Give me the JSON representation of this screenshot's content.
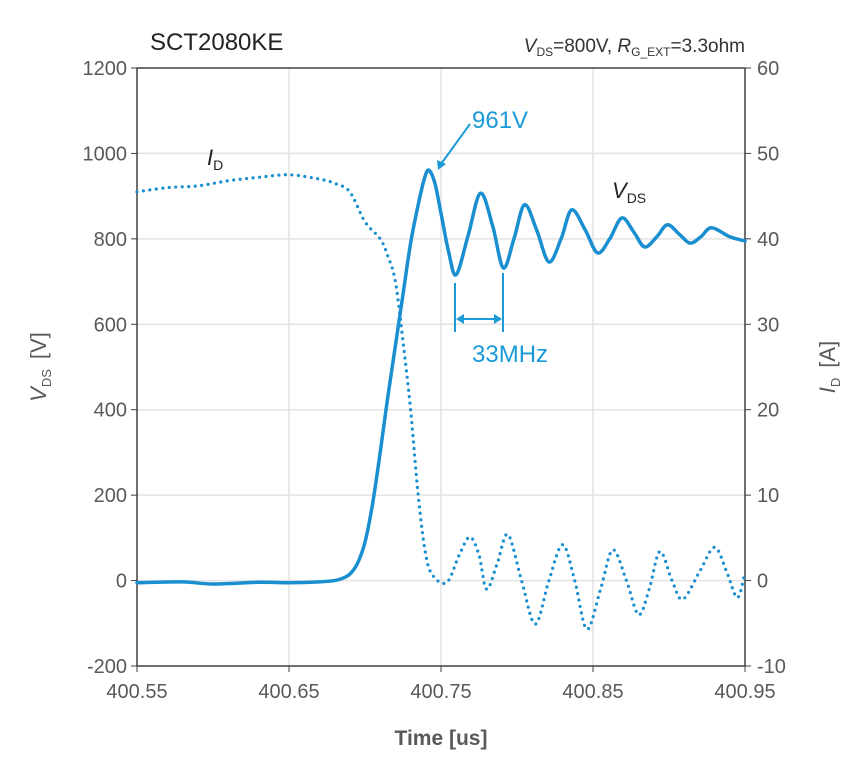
{
  "chart_data": {
    "type": "line",
    "title": "SCT2080KE",
    "subtitle": {
      "v_sym": "V",
      "v_sub": "DS",
      "v_val": "=800V, ",
      "r_sym": "R",
      "r_sub": "G_EXT",
      "r_val": "=3.3ohm"
    },
    "xlabel": "Time [us]",
    "ylabel": {
      "sym": "V",
      "sub": "DS",
      "unit": "[V]"
    },
    "y2label": {
      "sym": "I",
      "sub": "D",
      "unit": "[A]"
    },
    "xlim": [
      400.55,
      400.95
    ],
    "ylim": [
      -200,
      1200
    ],
    "y2lim": [
      -10,
      60
    ],
    "xticks": [
      "400.55",
      "400.65",
      "400.75",
      "400.85",
      "400.95"
    ],
    "yticks": [
      "-200",
      "0",
      "200",
      "400",
      "600",
      "800",
      "1000",
      "1200"
    ],
    "y2ticks": [
      "-10",
      "0",
      "10",
      "20",
      "30",
      "40",
      "50",
      "60"
    ],
    "grid": true,
    "color": "#1a8fd0",
    "series": [
      {
        "name": "VDS",
        "label_sym": "V",
        "label_sub": "DS",
        "axis": "left",
        "style": "solid",
        "x": [
          400.55,
          400.58,
          400.6,
          400.63,
          400.65,
          400.67,
          400.68,
          400.685,
          400.69,
          400.695,
          400.7,
          400.705,
          400.71,
          400.715,
          400.72,
          400.725,
          400.73,
          400.735,
          400.739,
          400.742,
          400.746,
          400.75,
          400.755,
          400.76,
          400.768,
          400.776,
          400.784,
          400.791,
          400.798,
          400.805,
          400.813,
          400.821,
          400.829,
          400.836,
          400.845,
          400.853,
          400.861,
          400.869,
          400.877,
          400.884,
          400.892,
          400.899,
          400.907,
          400.914,
          400.921,
          400.928,
          400.94,
          400.95
        ],
        "y": [
          -5,
          -3,
          -8,
          -4,
          -5,
          -3,
          0,
          5,
          15,
          40,
          90,
          180,
          300,
          430,
          550,
          670,
          790,
          880,
          940,
          961,
          930,
          860,
          770,
          716,
          810,
          907,
          830,
          732,
          800,
          880,
          820,
          746,
          800,
          868,
          820,
          767,
          800,
          849,
          815,
          781,
          805,
          833,
          810,
          790,
          805,
          826,
          805,
          795
        ]
      },
      {
        "name": "ID",
        "label_sym": "I",
        "label_sub": "D",
        "axis": "right",
        "style": "dotted",
        "x": [
          400.55,
          400.57,
          400.59,
          400.61,
          400.63,
          400.65,
          400.67,
          400.68,
          400.69,
          400.7,
          400.71,
          400.715,
          400.72,
          400.725,
          400.73,
          400.735,
          400.74,
          400.745,
          400.754,
          400.762,
          400.769,
          400.775,
          400.78,
          400.787,
          400.794,
          400.803,
          400.812,
          400.821,
          400.83,
          400.838,
          400.846,
          400.855,
          400.863,
          400.872,
          400.88,
          400.887,
          400.894,
          400.902,
          400.909,
          400.92,
          400.93,
          400.938,
          400.945,
          400.95
        ],
        "y": [
          45.5,
          46,
          46.2,
          46.8,
          47.2,
          47.5,
          47,
          46.5,
          45.5,
          42,
          40,
          38,
          35,
          28,
          20,
          10,
          3,
          0.5,
          -0.2,
          3,
          5.1,
          3,
          -1,
          2,
          5.4,
          0,
          -5.1,
          0,
          4.2,
          0,
          -5.7,
          -1,
          3.6,
          0,
          -4,
          -1,
          3.4,
          0,
          -2.2,
          1,
          3.9,
          1,
          -2,
          1
        ]
      }
    ],
    "annotations": {
      "peak": "961V",
      "freq": "33MHz"
    }
  }
}
